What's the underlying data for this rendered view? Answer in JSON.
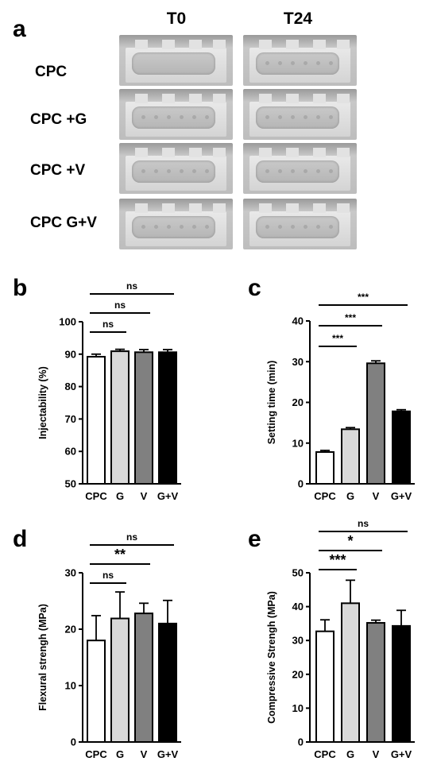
{
  "panel_a": {
    "letter": "a",
    "columns": [
      "T0",
      "T24"
    ],
    "rows": [
      "CPC",
      "CPC +G",
      "CPC +V",
      "CPC G+V"
    ]
  },
  "chart_data": [
    {
      "panel": "b",
      "type": "bar",
      "categories": [
        "CPC",
        "G",
        "V",
        "G+V"
      ],
      "values": [
        89.2,
        90.9,
        90.6,
        90.6
      ],
      "errors": [
        0.8,
        0.6,
        0.8,
        0.8
      ],
      "colors": [
        "#ffffff",
        "#d9d9d9",
        "#808080",
        "#000000"
      ],
      "ylabel": "Injectability  (%)",
      "ylim": [
        50,
        100
      ],
      "yticks": [
        50,
        60,
        70,
        80,
        90,
        100
      ],
      "significance": [
        {
          "from": 0,
          "to": 1,
          "label": "ns"
        },
        {
          "from": 0,
          "to": 2,
          "label": "ns"
        },
        {
          "from": 0,
          "to": 3,
          "label": "ns"
        }
      ]
    },
    {
      "panel": "c",
      "type": "bar",
      "categories": [
        "CPC",
        "G",
        "V",
        "G+V"
      ],
      "values": [
        7.8,
        13.4,
        29.6,
        17.8
      ],
      "errors": [
        0.4,
        0.4,
        0.6,
        0.4
      ],
      "colors": [
        "#ffffff",
        "#d9d9d9",
        "#808080",
        "#000000"
      ],
      "ylabel": "Setting time (min)",
      "ylim": [
        0,
        40
      ],
      "yticks": [
        0,
        10,
        20,
        30,
        40
      ],
      "significance": [
        {
          "from": 0,
          "to": 1,
          "label": "***"
        },
        {
          "from": 0,
          "to": 2,
          "label": "***"
        },
        {
          "from": 0,
          "to": 3,
          "label": "***"
        }
      ]
    },
    {
      "panel": "d",
      "type": "bar",
      "categories": [
        "CPC",
        "G",
        "V",
        "G+V"
      ],
      "values": [
        18.0,
        21.9,
        22.8,
        21.0
      ],
      "errors": [
        4.4,
        4.7,
        1.8,
        4.1
      ],
      "colors": [
        "#ffffff",
        "#d9d9d9",
        "#808080",
        "#000000"
      ],
      "ylabel": "Flexural strengh (MPa)",
      "ylim": [
        0,
        30
      ],
      "yticks": [
        0,
        10,
        20,
        30
      ],
      "significance": [
        {
          "from": 0,
          "to": 1,
          "label": "ns"
        },
        {
          "from": 0,
          "to": 2,
          "label": "**"
        },
        {
          "from": 0,
          "to": 3,
          "label": "ns"
        }
      ]
    },
    {
      "panel": "e",
      "type": "bar",
      "categories": [
        "CPC",
        "G",
        "V",
        "G+V"
      ],
      "values": [
        32.7,
        41.0,
        35.2,
        34.3
      ],
      "errors": [
        3.4,
        6.8,
        0.8,
        4.6
      ],
      "colors": [
        "#ffffff",
        "#d9d9d9",
        "#808080",
        "#000000"
      ],
      "ylabel": "Compressive Strengh (MPa)",
      "ylim": [
        0,
        50
      ],
      "yticks": [
        0,
        10,
        20,
        30,
        40,
        50
      ],
      "significance": [
        {
          "from": 0,
          "to": 1,
          "label": "***"
        },
        {
          "from": 0,
          "to": 2,
          "label": "*"
        },
        {
          "from": 0,
          "to": 3,
          "label": "ns"
        }
      ]
    }
  ]
}
